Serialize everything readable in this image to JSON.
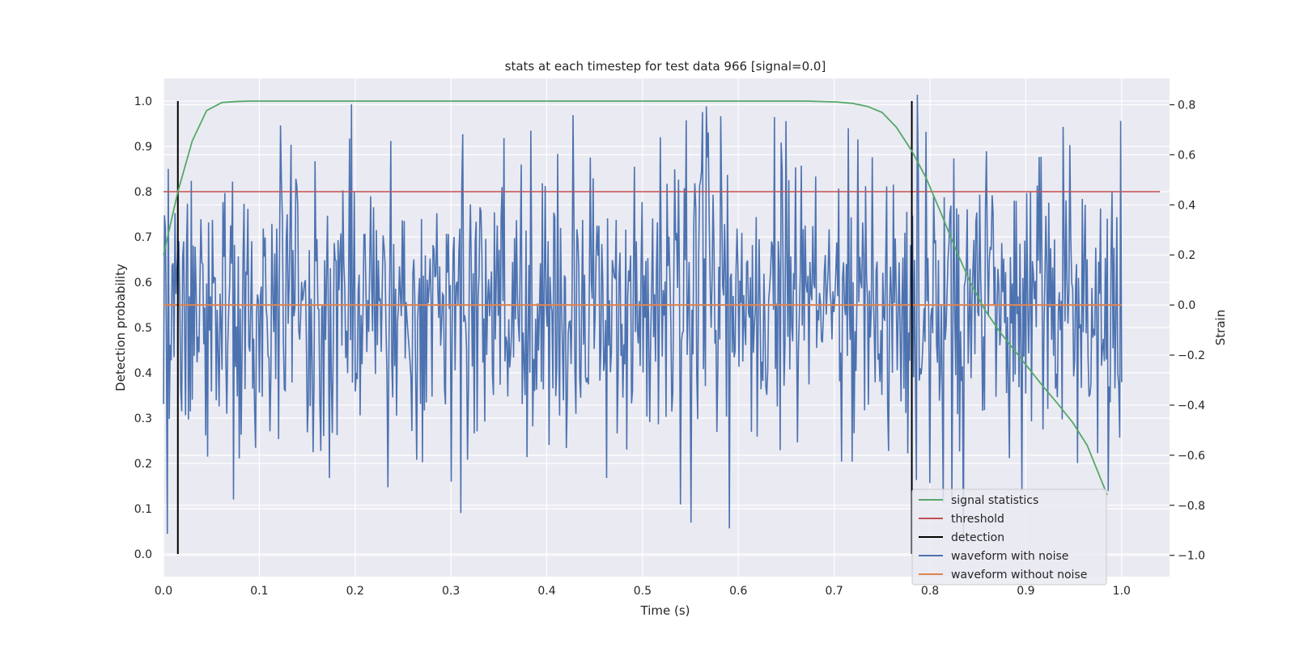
{
  "chart_data": {
    "type": "line",
    "title": "stats at each timestep for test data 966 [signal=0.0]",
    "xlabel": "Time (s)",
    "ylabel": "Detection probability",
    "y2label": "Strain",
    "xlim": [
      0.0,
      1.05
    ],
    "ylim": [
      -0.05,
      1.05
    ],
    "y2lim": [
      -1.085,
      0.905
    ],
    "xticks": [
      "0.0",
      "0.1",
      "0.2",
      "0.3",
      "0.4",
      "0.5",
      "0.6",
      "0.7",
      "0.8",
      "0.9",
      "1.0"
    ],
    "yticks": [
      "0.0",
      "0.1",
      "0.2",
      "0.3",
      "0.4",
      "0.5",
      "0.6",
      "0.7",
      "0.8",
      "0.9",
      "1.0"
    ],
    "y2ticks": [
      "−1.0",
      "−0.8",
      "−0.6",
      "−0.4",
      "−0.2",
      "0.0",
      "0.2",
      "0.4",
      "0.6",
      "0.8"
    ],
    "grid": true,
    "legend_position": "lower-right",
    "colors": {
      "signal_statistics": "#55a868",
      "threshold": "#c44e52",
      "detection": "#000000",
      "waveform_with_noise": "#4c72b0",
      "waveform_without_noise": "#dd8452",
      "plot_background": "#eaeaf2",
      "grid": "#ffffff"
    },
    "series": [
      {
        "name": "signal statistics",
        "axis": "left",
        "x": [
          0.0,
          0.015,
          0.03,
          0.045,
          0.061,
          0.076,
          0.091,
          0.2,
          0.4,
          0.6,
          0.67,
          0.703,
          0.719,
          0.735,
          0.75,
          0.765,
          0.781,
          0.796,
          0.812,
          0.827,
          0.842,
          0.857,
          0.873,
          0.888,
          0.903,
          0.918,
          0.934,
          0.949,
          0.964,
          0.985
        ],
        "values": [
          0.66,
          0.8,
          0.912,
          0.979,
          0.997,
          0.999,
          1.0,
          1.0,
          1.0,
          1.0,
          1.0,
          0.998,
          0.995,
          0.988,
          0.975,
          0.942,
          0.89,
          0.83,
          0.75,
          0.672,
          0.6,
          0.54,
          0.49,
          0.45,
          0.41,
          0.37,
          0.33,
          0.29,
          0.24,
          0.13
        ]
      },
      {
        "name": "threshold",
        "axis": "left",
        "x": [
          0.0,
          1.04
        ],
        "values": [
          0.8,
          0.8
        ]
      },
      {
        "name": "detection",
        "axis": "left",
        "segments": [
          {
            "x": 0.015,
            "y0": 0.0,
            "y1": 1.0
          },
          {
            "x": 0.781,
            "y0": 0.0,
            "y1": 1.0
          }
        ]
      },
      {
        "name": "waveform with noise",
        "axis": "right",
        "description": "noisy strain samples between x=0.0 and x=1.0, ranging roughly -1.0 to 0.84",
        "x_range": [
          0.0,
          1.0
        ],
        "n_points": 1000,
        "min": -1.0,
        "max": 0.84,
        "std": 0.3
      },
      {
        "name": "waveform without noise",
        "axis": "right",
        "x": [
          0.0,
          1.0
        ],
        "values": [
          0.0,
          0.0
        ]
      }
    ]
  }
}
